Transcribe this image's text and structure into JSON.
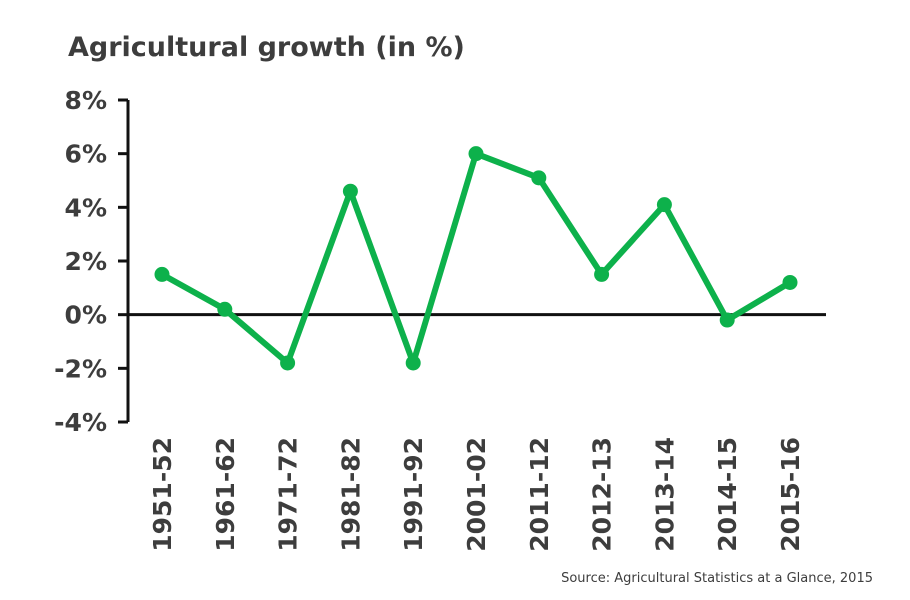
{
  "chart_data": {
    "type": "line",
    "title": "Agricultural growth (in %)",
    "categories": [
      "1951-52",
      "1961-62",
      "1971-72",
      "1981-82",
      "1991-92",
      "2001-02",
      "2011-12",
      "2012-13",
      "2013-14",
      "2014-15",
      "2015-16"
    ],
    "series": [
      {
        "values": [
          1.5,
          0.2,
          -1.8,
          4.6,
          -1.8,
          6.0,
          5.1,
          1.5,
          4.1,
          -0.2,
          1.2
        ]
      }
    ],
    "y_ticks": [
      8,
      6,
      4,
      2,
      0,
      -2,
      -4
    ],
    "y_tick_labels": [
      "8%",
      "6%",
      "4%",
      "2%",
      "0%",
      "-2%",
      "-4%"
    ],
    "ylim": [
      -4,
      8
    ],
    "xlabel": "",
    "ylabel": "",
    "grid": false,
    "source": "Source: Agricultural Statistics at a Glance, 2015",
    "colors": {
      "line": "#0db14b",
      "axis": "#111111",
      "text": "#3d3d3d"
    }
  }
}
